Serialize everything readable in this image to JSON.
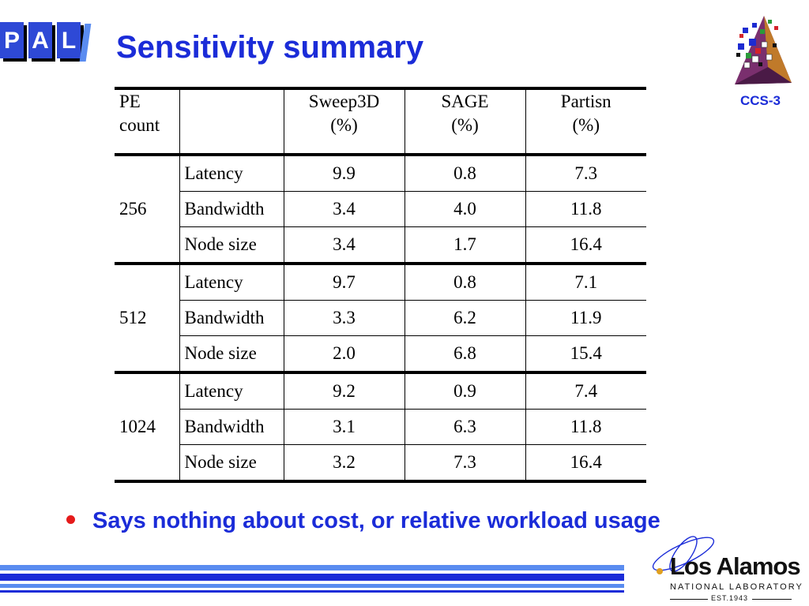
{
  "slide": {
    "title": "Sensitivity summary",
    "logo_text": [
      "P",
      "A",
      "L"
    ],
    "ccs_label": "CCS-3",
    "bullet": "Says nothing about cost, or relative workload usage",
    "footer": {
      "org_main": "Los Alamos",
      "org_sub": "NATIONAL LABORATORY",
      "est": "EST.1943"
    }
  },
  "table": {
    "headers": {
      "pe": [
        "PE",
        "count"
      ],
      "sweep3d": [
        "Sweep3D",
        "(%)"
      ],
      "sage": [
        "SAGE",
        "(%)"
      ],
      "partisn": [
        "Partisn",
        "(%)"
      ]
    },
    "groups": [
      {
        "pe": "256",
        "rows": [
          {
            "param": "Latency",
            "sweep3d": "9.9",
            "sage": "0.8",
            "partisn": "7.3"
          },
          {
            "param": "Bandwidth",
            "sweep3d": "3.4",
            "sage": "4.0",
            "partisn": "11.8"
          },
          {
            "param": "Node size",
            "sweep3d": "3.4",
            "sage": "1.7",
            "partisn": "16.4"
          }
        ]
      },
      {
        "pe": "512",
        "rows": [
          {
            "param": "Latency",
            "sweep3d": "9.7",
            "sage": "0.8",
            "partisn": "7.1"
          },
          {
            "param": "Bandwidth",
            "sweep3d": "3.3",
            "sage": "6.2",
            "partisn": "11.9"
          },
          {
            "param": "Node size",
            "sweep3d": "2.0",
            "sage": "6.8",
            "partisn": "15.4"
          }
        ]
      },
      {
        "pe": "1024",
        "rows": [
          {
            "param": "Latency",
            "sweep3d": "9.2",
            "sage": "0.9",
            "partisn": "7.4"
          },
          {
            "param": "Bandwidth",
            "sweep3d": "3.1",
            "sage": "6.3",
            "partisn": "11.8"
          },
          {
            "param": "Node size",
            "sweep3d": "3.2",
            "sage": "7.3",
            "partisn": "16.4"
          }
        ]
      }
    ]
  },
  "colors": {
    "title_blue": "#1b2cd8",
    "bullet_red": "#e51b1b",
    "stripe_blue": "#1b2cd8",
    "stripe_light": "#5a8cf0"
  }
}
